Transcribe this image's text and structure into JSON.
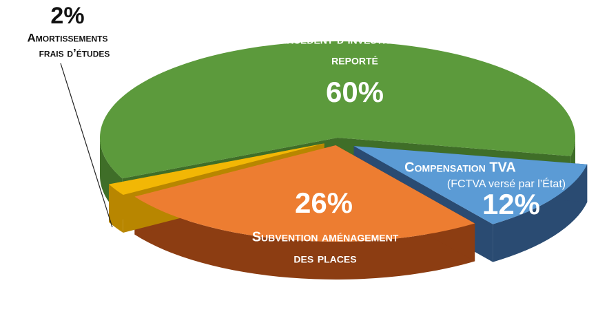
{
  "chart_data": {
    "type": "pie",
    "categories": [
      [
        "Excédent d’investissement",
        "reporté"
      ],
      [
        "Compensation TVA",
        "(FCTVA versé par l’État)"
      ],
      [
        "Subvention aménagement",
        "des places"
      ],
      [
        "Amortissements",
        "frais d’études"
      ]
    ],
    "values": [
      60,
      12,
      26,
      2
    ],
    "value_labels": [
      "60%",
      "12%",
      "26%",
      "2%"
    ],
    "colors": [
      "#5c9a3c",
      "#5b9bd5",
      "#ed7d31",
      "#f2b705"
    ],
    "side_colors": [
      "#3f6e28",
      "#2a4b72",
      "#8c3d12",
      "#b88600"
    ]
  }
}
